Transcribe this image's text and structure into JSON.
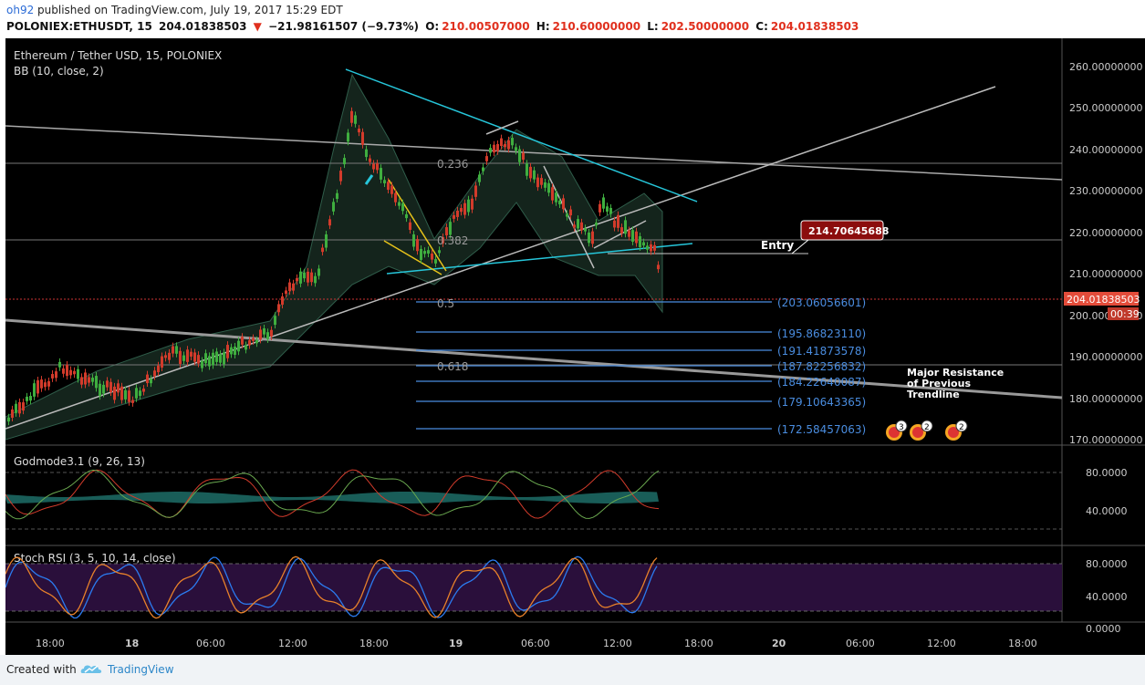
{
  "header": {
    "user": "oh92",
    "published": " published on TradingView.com, July 19, 2017 15:29 EDT",
    "symbol": "POLONIEX:ETHUSDT, 15",
    "last": "204.01838503",
    "change": "−21.98161507 (−9.73%)",
    "o_label": "O:",
    "o_val": "210.00507000",
    "h_label": "H:",
    "h_val": "210.60000000",
    "l_label": "L:",
    "l_val": "202.50000000",
    "c_label": "C:",
    "c_val": "204.01838503"
  },
  "legend": {
    "title": "Ethereum / Tether USD, 15, POLONIEX",
    "bb": "BB (10, close, 2)",
    "godmode": "Godmode3.1 (9, 26, 13)",
    "stoch": "Stoch RSI (3, 5, 10, 14, close)"
  },
  "price_axis": [
    "260.00000000",
    "250.00000000",
    "240.00000000",
    "230.00000000",
    "220.00000000",
    "210.00000000",
    "200.00000000",
    "190.00000000",
    "180.00000000",
    "170.00000000"
  ],
  "price_tag": {
    "value": "204.01838503",
    "countdown": "00:39"
  },
  "godmode_axis": [
    "80.0000",
    "40.0000"
  ],
  "stoch_axis": [
    "80.0000",
    "40.0000",
    "0.0000"
  ],
  "time_axis": [
    "18:00",
    "18",
    "06:00",
    "12:00",
    "18:00",
    "19",
    "06:00",
    "12:00",
    "18:00",
    "20",
    "06:00",
    "12:00",
    "18:00"
  ],
  "fib": {
    "l236": "0.236",
    "l382": "0.382",
    "l5": "0.5",
    "l618": "0.618"
  },
  "targets": [
    "(203.06056601)",
    "(195.86823110)",
    "(191.41873578)",
    "(187.82256832)",
    "(184.22640087)",
    "(179.10643365)",
    "(172.58457063)"
  ],
  "entry": {
    "label": "Entry",
    "value": "214.70645688"
  },
  "note": {
    "l1": "Major Resistance",
    "l2": "of Previous",
    "l3": "Trendline"
  },
  "events": [
    "3",
    "2",
    "2"
  ],
  "footer": {
    "created": "Created with",
    "brand": "TradingView"
  },
  "colors": {
    "up": "#3fae3f",
    "down": "#d23b2b",
    "cyan": "#26c6da",
    "target": "#4a8de0",
    "stoch_bg": "#2a0f3b"
  }
}
